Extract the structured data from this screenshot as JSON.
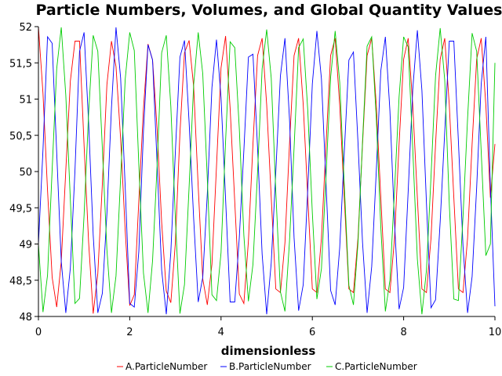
{
  "chart_data": {
    "type": "line",
    "title": "Particle Numbers, Volumes, and Global Quantity Values",
    "xlabel": "dimensionless",
    "ylabel": "",
    "xlim": [
      0,
      10
    ],
    "ylim": [
      48,
      52
    ],
    "x_ticks": [
      "0",
      "2",
      "4",
      "6",
      "8",
      "10"
    ],
    "y_ticks": [
      "48",
      "48,5",
      "49",
      "49,5",
      "50",
      "50,5",
      "51",
      "51,5",
      "52"
    ],
    "grid": false,
    "legend_position": "bottom",
    "sampling": {
      "start": 0,
      "end": 10,
      "step": 0.1
    },
    "series": [
      {
        "name": "A.ParticleNumber",
        "color": "#ff0000",
        "values": [
          52.0,
          51.08,
          49.74,
          48.54,
          48.13,
          48.76,
          50.02,
          51.25,
          51.8,
          51.8,
          50.36,
          49.02,
          48.04,
          48.59,
          49.83,
          51.2,
          51.8,
          51.45,
          50.45,
          49.19,
          48.15,
          48.3,
          49.6,
          50.87,
          51.76,
          51.54,
          50.59,
          49.3,
          48.35,
          48.19,
          49.02,
          50.53,
          51.64,
          51.81,
          51.17,
          49.79,
          48.52,
          48.16,
          48.72,
          50.07,
          51.43,
          51.87,
          50.87,
          49.58,
          48.31,
          48.18,
          49.04,
          50.38,
          51.6,
          51.84,
          50.92,
          49.64,
          48.38,
          48.33,
          49.02,
          50.38,
          51.6,
          51.84,
          50.92,
          49.64,
          48.38,
          48.33,
          49.08,
          50.38,
          51.6,
          51.84,
          50.92,
          49.64,
          48.38,
          48.33,
          49.08,
          50.38,
          51.6,
          51.84,
          50.92,
          49.64,
          48.38,
          48.33,
          49.08,
          50.38,
          51.55,
          51.84,
          50.92,
          49.64,
          48.38,
          48.33,
          49.08,
          50.38,
          51.55,
          51.84,
          50.92,
          49.64,
          48.38,
          48.33,
          49.08,
          50.38,
          51.55,
          51.84,
          50.92,
          49.64,
          50.38
        ]
      },
      {
        "name": "B.ParticleNumber",
        "color": "#0000ff",
        "values": [
          49.0,
          50.3,
          51.86,
          51.77,
          50.26,
          48.76,
          48.05,
          48.67,
          50.02,
          51.66,
          51.92,
          50.67,
          49.13,
          48.05,
          48.32,
          49.42,
          50.88,
          51.99,
          51.29,
          49.79,
          48.18,
          48.13,
          48.9,
          50.56,
          51.75,
          51.54,
          50.11,
          48.64,
          48.03,
          48.89,
          50.28,
          51.58,
          51.81,
          50.68,
          49.35,
          48.2,
          48.54,
          49.69,
          51.16,
          51.82,
          51.02,
          49.62,
          48.2,
          48.2,
          49.09,
          50.29,
          51.58,
          51.62,
          50.32,
          48.86,
          48.03,
          48.74,
          49.99,
          51.32,
          51.84,
          50.72,
          49.09,
          48.08,
          48.44,
          49.76,
          51.21,
          51.94,
          51.28,
          49.82,
          48.36,
          48.16,
          48.95,
          50.26,
          51.54,
          51.65,
          50.4,
          49.02,
          48.05,
          48.69,
          50.0,
          51.39,
          51.86,
          50.84,
          49.29,
          48.1,
          48.4,
          49.73,
          51.13,
          51.95,
          51.12,
          49.56,
          48.12,
          48.23,
          49.31,
          50.55,
          51.8,
          51.8,
          50.42,
          48.97,
          48.05,
          48.55,
          49.78,
          51.21,
          51.86,
          49.79,
          48.14
        ]
      },
      {
        "name": "C.ParticleNumber",
        "color": "#00cc00",
        "values": [
          49.0,
          48.06,
          48.57,
          50.03,
          51.42,
          51.99,
          51.05,
          49.61,
          48.18,
          48.25,
          49.4,
          50.81,
          51.88,
          51.66,
          50.32,
          48.92,
          48.05,
          48.56,
          49.92,
          51.27,
          51.92,
          51.67,
          50.09,
          48.6,
          48.05,
          48.77,
          50.08,
          51.64,
          51.88,
          50.9,
          49.35,
          48.04,
          48.44,
          49.79,
          51.2,
          51.92,
          51.35,
          49.9,
          48.3,
          48.22,
          48.88,
          50.42,
          51.79,
          51.71,
          50.59,
          49.12,
          48.21,
          48.72,
          50.0,
          51.42,
          51.96,
          51.29,
          49.73,
          48.34,
          48.07,
          49.04,
          50.32,
          51.71,
          51.83,
          50.84,
          49.43,
          48.24,
          48.66,
          49.95,
          51.3,
          51.94,
          51.23,
          49.82,
          48.43,
          48.16,
          49.01,
          50.42,
          51.73,
          51.86,
          50.74,
          49.23,
          48.07,
          48.5,
          49.74,
          51.03,
          51.86,
          51.72,
          50.32,
          48.79,
          48.03,
          48.64,
          49.93,
          51.32,
          51.98,
          51.26,
          49.55,
          48.24,
          48.22,
          49.38,
          50.73,
          51.91,
          51.66,
          50.27,
          48.84,
          49.0,
          51.5
        ]
      }
    ]
  }
}
